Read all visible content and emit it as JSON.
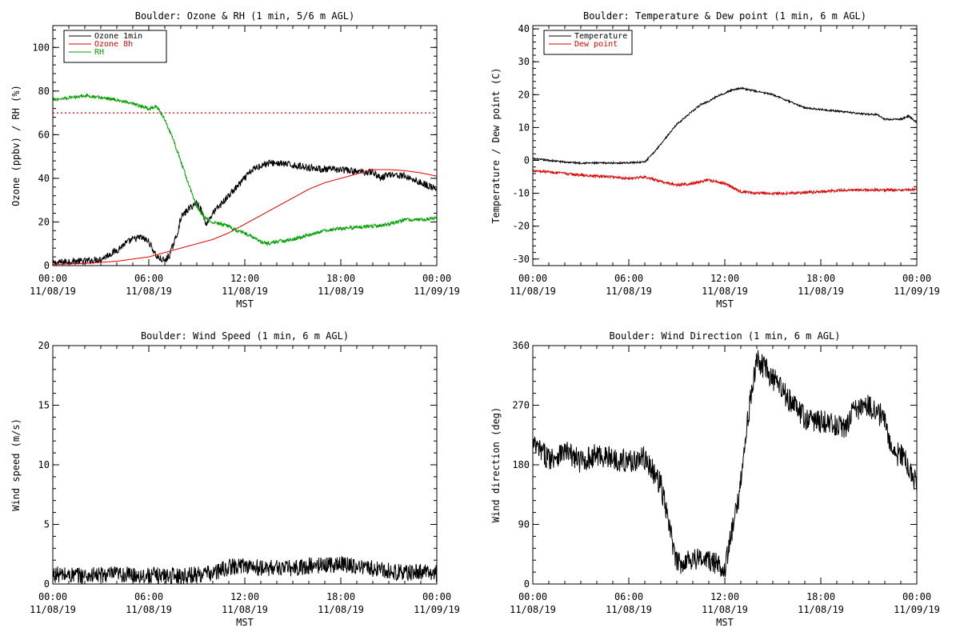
{
  "x_ticks": [
    "00:00",
    "06:00",
    "12:00",
    "18:00",
    "00:00"
  ],
  "x_dates": [
    "11/08/19",
    "11/08/19",
    "11/08/19",
    "11/08/19",
    "11/09/19"
  ],
  "colors": {
    "black": "#000000",
    "red": "#e00000",
    "green": "#00a000"
  },
  "chart_data": [
    {
      "type": "line",
      "title": "Boulder: Ozone & RH (1 min, 5/6 m AGL)",
      "xlabel": "MST",
      "ylabel": "Ozone (ppbv) / RH (%)",
      "xlim": [
        0,
        24
      ],
      "ylim": [
        0,
        110
      ],
      "yticks": [
        0,
        20,
        40,
        60,
        80,
        100
      ],
      "legend": "top-left",
      "grid": false,
      "threshold": {
        "value": 70,
        "style": "dotted",
        "color": "#e00000"
      },
      "series": [
        {
          "name": "Ozone 1min",
          "color": "#000000",
          "noise": 1.6,
          "x": [
            0,
            1,
            2,
            3,
            4,
            4.5,
            5,
            5.5,
            6,
            6.5,
            7,
            7.3,
            7.8,
            8,
            8.5,
            9,
            9.3,
            9.6,
            10,
            10.5,
            11,
            11.5,
            12,
            12.5,
            13,
            13.5,
            14,
            15,
            16,
            17,
            18,
            19,
            20,
            20.5,
            21,
            22,
            23,
            24
          ],
          "y": [
            1,
            2,
            2,
            3,
            7,
            10,
            12,
            13,
            11,
            4,
            2,
            5,
            15,
            22,
            26,
            29,
            25,
            19,
            24,
            28,
            32,
            36,
            40,
            44,
            46,
            47,
            47,
            46,
            45,
            44,
            44,
            43,
            43,
            40,
            42,
            41,
            38,
            35
          ]
        },
        {
          "name": "Ozone 8h",
          "color": "#e00000",
          "noise": 0,
          "x": [
            0,
            2,
            4,
            6,
            7,
            8,
            9,
            10,
            11,
            12,
            13,
            14,
            15,
            16,
            17,
            18,
            19,
            20,
            21,
            22,
            23,
            24
          ],
          "y": [
            0.5,
            1,
            2,
            4,
            6,
            8,
            10,
            12,
            15,
            19,
            23,
            27,
            31,
            35,
            38,
            40,
            42,
            44,
            44,
            43.5,
            42.5,
            41
          ]
        },
        {
          "name": "RH",
          "color": "#00a000",
          "noise": 0.8,
          "x": [
            0,
            1,
            2,
            3,
            4,
            5,
            6,
            6.5,
            7,
            7.5,
            8,
            8.5,
            9,
            9.5,
            10,
            10.5,
            11,
            11.5,
            12,
            12.5,
            13,
            13.5,
            14,
            15,
            16,
            17,
            18,
            19,
            20,
            21,
            22,
            23,
            24
          ],
          "y": [
            76,
            77,
            78,
            77,
            76,
            74,
            72,
            73,
            67,
            58,
            48,
            37,
            27,
            22,
            20,
            19,
            18,
            16,
            15,
            13,
            11,
            10,
            11,
            12,
            14,
            16,
            17,
            17.5,
            18,
            19,
            21,
            21,
            22
          ]
        }
      ]
    },
    {
      "type": "line",
      "title": "Boulder: Temperature & Dew point (1 min, 6 m AGL)",
      "xlabel": "MST",
      "ylabel": "Temperature / Dew point (C)",
      "xlim": [
        0,
        24
      ],
      "ylim": [
        -32,
        41
      ],
      "yticks": [
        -30,
        -20,
        -10,
        0,
        10,
        20,
        30,
        40
      ],
      "legend": "top-left",
      "grid": false,
      "series": [
        {
          "name": "Temperature",
          "color": "#000000",
          "noise": 0.25,
          "x": [
            0,
            1,
            2,
            3,
            4,
            5,
            6,
            7,
            7.5,
            8,
            8.5,
            9,
            9.5,
            10,
            10.5,
            11,
            11.5,
            12,
            12.5,
            13,
            13.5,
            14,
            15,
            16,
            17,
            18,
            19,
            20,
            21,
            21.5,
            22,
            23,
            23.5,
            24
          ],
          "y": [
            0.5,
            0,
            -0.5,
            -0.8,
            -0.8,
            -0.8,
            -0.7,
            -0.5,
            2,
            5,
            8,
            11,
            13,
            15,
            17,
            18,
            19.5,
            20.5,
            21.5,
            22,
            21.5,
            21,
            20,
            18,
            16,
            15.5,
            15,
            14.5,
            14,
            14,
            12.5,
            12.5,
            13.5,
            11.5
          ]
        },
        {
          "name": "Dew point",
          "color": "#e00000",
          "noise": 0.4,
          "x": [
            0,
            1,
            2,
            3,
            4,
            5,
            6,
            7,
            8,
            9,
            10,
            11,
            12,
            13,
            14,
            15,
            16,
            17,
            18,
            19,
            20,
            21,
            22,
            23,
            24
          ],
          "y": [
            -3,
            -3.5,
            -4,
            -4.5,
            -4.8,
            -5,
            -5.5,
            -5,
            -6.5,
            -7.5,
            -7,
            -6,
            -7,
            -9.5,
            -10,
            -10,
            -10,
            -9.8,
            -9.5,
            -9.2,
            -9,
            -9,
            -9,
            -9,
            -8.8
          ]
        }
      ]
    },
    {
      "type": "line",
      "title": "Boulder: Wind Speed (1 min, 6 m AGL)",
      "xlabel": "MST",
      "ylabel": "Wind speed (m/s)",
      "xlim": [
        0,
        24
      ],
      "ylim": [
        0,
        20
      ],
      "yticks": [
        0,
        5,
        10,
        15,
        20
      ],
      "grid": false,
      "series": [
        {
          "name": "",
          "color": "#000000",
          "noise": 0.7,
          "x": [
            0,
            2,
            4,
            6,
            8,
            10,
            11,
            12,
            13,
            14,
            15,
            16,
            17,
            18,
            19,
            20,
            21,
            22,
            23,
            24
          ],
          "y": [
            0.8,
            0.7,
            0.8,
            0.7,
            0.7,
            0.9,
            1.4,
            1.6,
            1.3,
            1.4,
            1.3,
            1.5,
            1.6,
            1.7,
            1.5,
            1.3,
            1.1,
            0.9,
            1.0,
            0.9
          ]
        }
      ]
    },
    {
      "type": "line",
      "title": "Boulder: Wind Direction (1 min, 6 m AGL)",
      "xlabel": "MST",
      "ylabel": "Wind direction (deg)",
      "xlim": [
        0,
        24
      ],
      "ylim": [
        0,
        360
      ],
      "yticks": [
        0,
        90,
        180,
        270,
        360
      ],
      "grid": false,
      "series": [
        {
          "name": "",
          "color": "#000000",
          "noise": 18,
          "x": [
            0,
            1,
            2,
            3,
            4,
            5,
            6,
            7,
            8,
            9,
            10,
            11,
            12,
            12.8,
            13.5,
            14,
            15,
            16,
            17,
            18,
            19,
            19.5,
            20,
            21,
            22,
            22.5,
            23,
            24
          ],
          "y": [
            210,
            190,
            200,
            185,
            195,
            190,
            185,
            190,
            150,
            30,
            40,
            35,
            25,
            120,
            260,
            340,
            310,
            280,
            250,
            245,
            240,
            235,
            260,
            270,
            250,
            190,
            200,
            150
          ]
        }
      ]
    }
  ]
}
